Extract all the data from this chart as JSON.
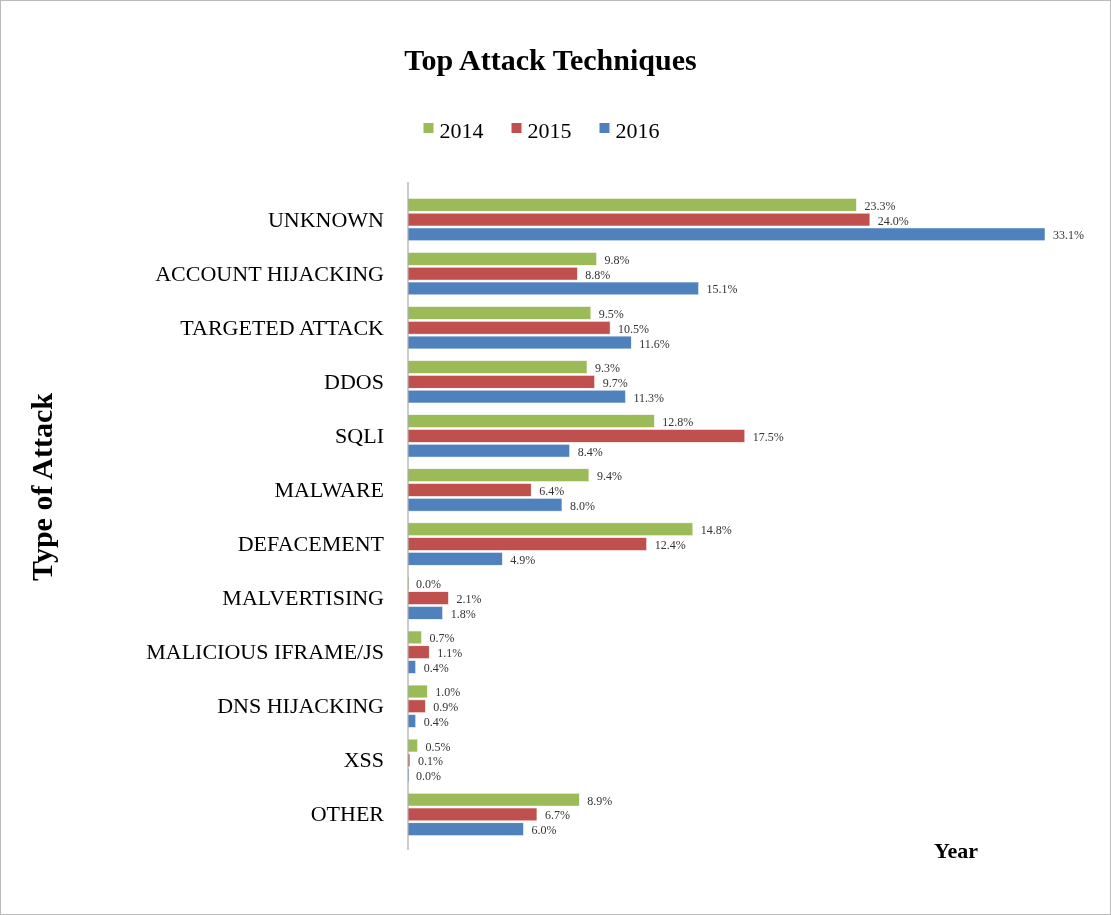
{
  "chart_data": {
    "type": "bar",
    "orientation": "horizontal",
    "title": "Top Attack Techniques",
    "ylabel": "Type of Attack",
    "xlabel": "Year",
    "legend": "top",
    "categories": [
      "UNKNOWN",
      "ACCOUNT HIJACKING",
      "TARGETED ATTACK",
      "DDOS",
      "SQLI",
      "MALWARE",
      "DEFACEMENT",
      "MALVERTISING",
      "MALICIOUS IFRAME/JS",
      "DNS HIJACKING",
      "XSS",
      "OTHER"
    ],
    "series": [
      {
        "name": "2014",
        "color": "#9bbb59",
        "values": [
          23.3,
          9.8,
          9.5,
          9.3,
          12.8,
          9.4,
          14.8,
          0.0,
          0.7,
          1.0,
          0.5,
          8.9
        ],
        "value_labels": [
          "23.3%",
          "9.8%",
          "9.5%",
          "9.3%",
          "12.8%",
          "9.4%",
          "14.8%",
          "0.0%",
          "0.7%",
          "1.0%",
          "0.5%",
          "8.9%"
        ]
      },
      {
        "name": "2015",
        "color": "#c0504d",
        "values": [
          24.0,
          8.8,
          10.5,
          9.7,
          17.5,
          6.4,
          12.4,
          2.1,
          1.1,
          0.9,
          0.1,
          6.7
        ],
        "value_labels": [
          "24.0%",
          "8.8%",
          "10.5%",
          "9.7%",
          "17.5%",
          "6.4%",
          "12.4%",
          "2.1%",
          "1.1%",
          "0.9%",
          "0.1%",
          "6.7%"
        ]
      },
      {
        "name": "2016",
        "color": "#4f81bd",
        "values": [
          33.1,
          15.1,
          11.6,
          11.3,
          8.4,
          8.0,
          4.9,
          1.8,
          0.4,
          0.4,
          0.0,
          6.0
        ],
        "value_labels": [
          "33.1%",
          "15.1%",
          "11.6%",
          "11.3%",
          "8.4%",
          "8.0%",
          "4.9%",
          "1.8%",
          "0.4%",
          "0.4%",
          "0.0%",
          "6.0%"
        ]
      }
    ]
  }
}
